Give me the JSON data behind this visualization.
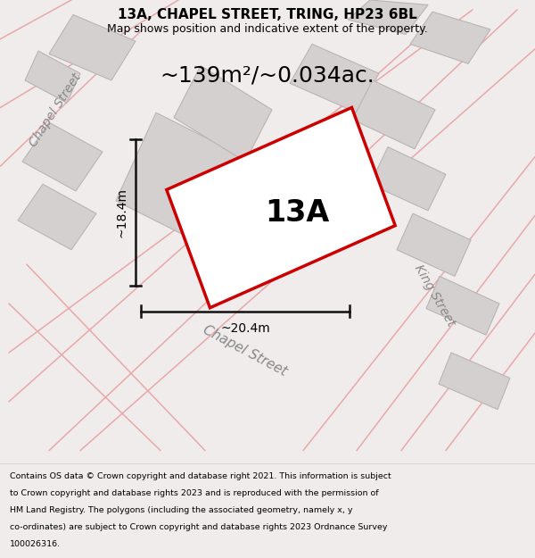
{
  "title": "13A, CHAPEL STREET, TRING, HP23 6BL",
  "subtitle": "Map shows position and indicative extent of the property.",
  "area_text": "~139m²/~0.034ac.",
  "label_13a": "13A",
  "dim_height": "~18.4m",
  "dim_width": "~20.4m",
  "street_chapel_bottom": "Chapel Street",
  "street_king": "King Street",
  "street_chapel_left": "Chapel Street",
  "footer_lines": [
    "Contains OS data © Crown copyright and database right 2021. This information is subject",
    "to Crown copyright and database rights 2023 and is reproduced with the permission of",
    "HM Land Registry. The polygons (including the associated geometry, namely x, y",
    "co-ordinates) are subject to Crown copyright and database rights 2023 Ordnance Survey",
    "100026316."
  ],
  "bg_color": "#f0ecec",
  "map_bg": "#ffffff",
  "red_color": "#cc0000",
  "gray_fill": "#d4d0d0",
  "gray_edge": "#bab4b4",
  "pink_road": "#e8a8a8",
  "street_color": "#888888",
  "dim_line_color": "#111111",
  "text_black": "#000000"
}
